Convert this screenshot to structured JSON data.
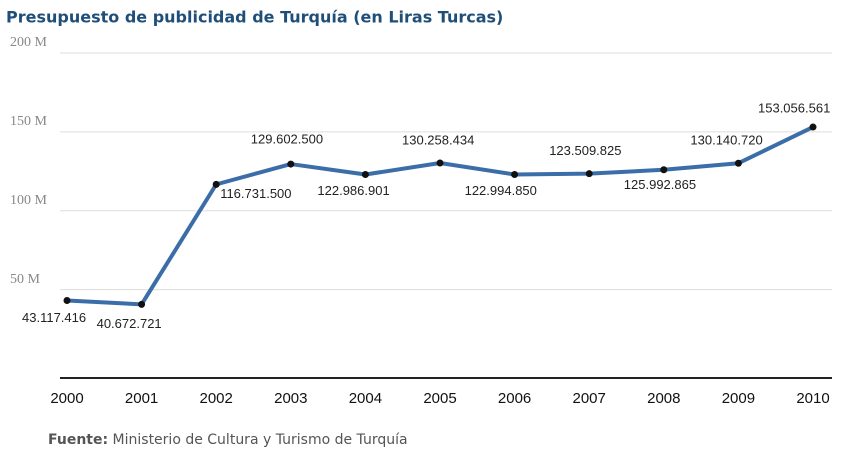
{
  "chart_data": {
    "type": "line",
    "title": "Presupuesto de publicidad de Turquía (en Liras Turcas)",
    "categories": [
      "2000",
      "2001",
      "2002",
      "2003",
      "2004",
      "2005",
      "2006",
      "2007",
      "2008",
      "2009",
      "2010"
    ],
    "series": [
      {
        "name": "Presupuesto",
        "color": "#3b6ea8",
        "values": [
          43117416,
          40672721,
          116731500,
          129602500,
          122986901,
          130258434,
          122994850,
          123509825,
          125992865,
          130140720,
          153056561
        ],
        "value_labels": [
          "43.117.416",
          "40.672.721",
          "116.731.500",
          "129.602.500",
          "122.986.901",
          "130.258.434",
          "122.994.850",
          "123.509.825",
          "125.992.865",
          "130.140.720",
          "153.056.561"
        ]
      }
    ],
    "ylim": [
      -6000000,
      200000000
    ],
    "yticks": [
      {
        "value": 50000000,
        "label": "50 M"
      },
      {
        "value": 100000000,
        "label": "100 M"
      },
      {
        "value": 150000000,
        "label": "150 M"
      },
      {
        "value": 200000000,
        "label": "200 M"
      }
    ],
    "grid": true,
    "source_label": "Fuente:",
    "source": "Ministerio de Cultura y Turismo de Turquía"
  }
}
